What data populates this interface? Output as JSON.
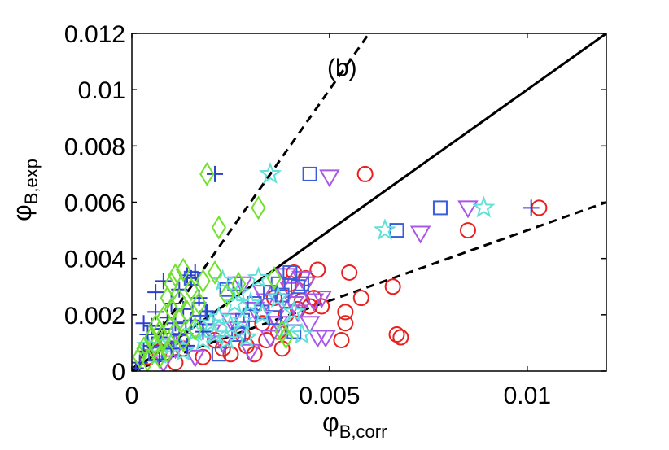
{
  "chart_data": {
    "type": "scatter",
    "panel_label": "(b)",
    "xlabel": {
      "symbol": "φ",
      "subscript": "B,corr"
    },
    "ylabel": {
      "symbol": "φ",
      "subscript": "B,exp"
    },
    "xlim": [
      0,
      0.012
    ],
    "ylim": [
      0,
      0.012
    ],
    "xticks": [
      0,
      0.005,
      0.01
    ],
    "xtick_labels": [
      "0",
      "0.005",
      "0.01"
    ],
    "yticks": [
      0,
      0.002,
      0.004,
      0.006,
      0.008,
      0.01,
      0.012
    ],
    "ytick_labels": [
      "0",
      "0.002",
      "0.004",
      "0.006",
      "0.008",
      "0.01",
      "0.012"
    ],
    "grid": false,
    "reference_lines": [
      {
        "name": "parity",
        "slope": 1,
        "style": "solid",
        "color": "#000000"
      },
      {
        "name": "upper-bound",
        "slope": 2,
        "style": "dashed",
        "color": "#000000"
      },
      {
        "name": "lower-bound",
        "slope": 0.5,
        "style": "dashed",
        "color": "#000000"
      }
    ],
    "series": [
      {
        "name": "circles",
        "marker": "circle",
        "color": "#e8201e",
        "points": [
          [
            0.0004,
            0.0005
          ],
          [
            0.0007,
            0.0007
          ],
          [
            0.0011,
            0.0003
          ],
          [
            0.0013,
            0.0008
          ],
          [
            0.0018,
            0.0005
          ],
          [
            0.0021,
            0.0011
          ],
          [
            0.0023,
            0.0008
          ],
          [
            0.0025,
            0.0006
          ],
          [
            0.0028,
            0.0013
          ],
          [
            0.0029,
            0.0009
          ],
          [
            0.0031,
            0.0006
          ],
          [
            0.0033,
            0.0017
          ],
          [
            0.0034,
            0.0011
          ],
          [
            0.0036,
            0.0026
          ],
          [
            0.0037,
            0.0014
          ],
          [
            0.0038,
            0.0008
          ],
          [
            0.0039,
            0.002
          ],
          [
            0.004,
            0.0031
          ],
          [
            0.0041,
            0.0035
          ],
          [
            0.0042,
            0.0022
          ],
          [
            0.0043,
            0.0025
          ],
          [
            0.0044,
            0.0033
          ],
          [
            0.0045,
            0.0023
          ],
          [
            0.0046,
            0.0026
          ],
          [
            0.0047,
            0.0036
          ],
          [
            0.0048,
            0.0023
          ],
          [
            0.0053,
            0.0011
          ],
          [
            0.0054,
            0.0017
          ],
          [
            0.0054,
            0.0021
          ],
          [
            0.0055,
            0.0035
          ],
          [
            0.0058,
            0.0026
          ],
          [
            0.0059,
            0.007
          ],
          [
            0.0066,
            0.003
          ],
          [
            0.0067,
            0.0013
          ],
          [
            0.0068,
            0.0012
          ],
          [
            0.0085,
            0.005
          ],
          [
            0.0103,
            0.0058
          ]
        ]
      },
      {
        "name": "triangles",
        "marker": "triangle-down",
        "color": "#a857e8",
        "points": [
          [
            0.0008,
            0.0003
          ],
          [
            0.0011,
            0.0008
          ],
          [
            0.0013,
            0.0011
          ],
          [
            0.0016,
            0.0005
          ],
          [
            0.002,
            0.0014
          ],
          [
            0.0023,
            0.001
          ],
          [
            0.0025,
            0.0018
          ],
          [
            0.0027,
            0.0015
          ],
          [
            0.0028,
            0.0031
          ],
          [
            0.003,
            0.0007
          ],
          [
            0.0031,
            0.0022
          ],
          [
            0.0033,
            0.0028
          ],
          [
            0.0034,
            0.0025
          ],
          [
            0.0035,
            0.0012
          ],
          [
            0.0036,
            0.0019
          ],
          [
            0.0037,
            0.0017
          ],
          [
            0.0038,
            0.0025
          ],
          [
            0.0039,
            0.0034
          ],
          [
            0.004,
            0.0029
          ],
          [
            0.0041,
            0.0024
          ],
          [
            0.0042,
            0.0021
          ],
          [
            0.0043,
            0.0033
          ],
          [
            0.0044,
            0.0031
          ],
          [
            0.0045,
            0.0017
          ],
          [
            0.0046,
            0.0025
          ],
          [
            0.0047,
            0.0012
          ],
          [
            0.0048,
            0.0026
          ],
          [
            0.0049,
            0.0012
          ],
          [
            0.005,
            0.0069
          ],
          [
            0.0073,
            0.0049
          ],
          [
            0.0085,
            0.0058
          ]
        ]
      },
      {
        "name": "squares",
        "marker": "square",
        "color": "#3a5ddb",
        "points": [
          [
            0.0006,
            0.0006
          ],
          [
            0.0009,
            0.0011
          ],
          [
            0.0012,
            0.0015
          ],
          [
            0.0015,
            0.0033
          ],
          [
            0.0017,
            0.0022
          ],
          [
            0.0019,
            0.0019
          ],
          [
            0.0022,
            0.0006
          ],
          [
            0.0024,
            0.0029
          ],
          [
            0.0026,
            0.0031
          ],
          [
            0.0027,
            0.0013
          ],
          [
            0.0028,
            0.0018
          ],
          [
            0.003,
            0.002
          ],
          [
            0.0031,
            0.0024
          ],
          [
            0.0033,
            0.0021
          ],
          [
            0.0035,
            0.0028
          ],
          [
            0.0036,
            0.0019
          ],
          [
            0.0037,
            0.0031
          ],
          [
            0.0038,
            0.0027
          ],
          [
            0.004,
            0.0035
          ],
          [
            0.0041,
            0.0014
          ],
          [
            0.0042,
            0.003
          ],
          [
            0.0043,
            0.0031
          ],
          [
            0.0045,
            0.007
          ],
          [
            0.0067,
            0.005
          ],
          [
            0.0078,
            0.0058
          ]
        ]
      },
      {
        "name": "stars",
        "marker": "star",
        "color": "#5fe0d8",
        "points": [
          [
            0.0004,
            0.0009
          ],
          [
            0.0007,
            0.0006
          ],
          [
            0.001,
            0.001
          ],
          [
            0.0013,
            0.0007
          ],
          [
            0.0016,
            0.0014
          ],
          [
            0.0018,
            0.0011
          ],
          [
            0.002,
            0.0017
          ],
          [
            0.0021,
            0.0013
          ],
          [
            0.0022,
            0.0019
          ],
          [
            0.0023,
            0.0032
          ],
          [
            0.0024,
            0.0011
          ],
          [
            0.0025,
            0.0016
          ],
          [
            0.0026,
            0.0024
          ],
          [
            0.0027,
            0.0028
          ],
          [
            0.0028,
            0.0018
          ],
          [
            0.0029,
            0.0012
          ],
          [
            0.003,
            0.0024
          ],
          [
            0.0032,
            0.0033
          ],
          [
            0.0033,
            0.002
          ],
          [
            0.0035,
            0.007
          ],
          [
            0.0037,
            0.0026
          ],
          [
            0.0039,
            0.0015
          ],
          [
            0.0041,
            0.0021
          ],
          [
            0.0043,
            0.0013
          ],
          [
            0.0064,
            0.005
          ],
          [
            0.0089,
            0.0058
          ]
        ]
      },
      {
        "name": "crosses",
        "marker": "plus",
        "color": "#2a3fd0",
        "points": [
          [
            0.0001,
            0.0001
          ],
          [
            0.0002,
            0.0003
          ],
          [
            0.0003,
            0.0007
          ],
          [
            0.0003,
            0.0017
          ],
          [
            0.0004,
            0.0013
          ],
          [
            0.0005,
            0.0016
          ],
          [
            0.0005,
            0.0009
          ],
          [
            0.0006,
            0.0021
          ],
          [
            0.0006,
            0.0028
          ],
          [
            0.0007,
            0.0004
          ],
          [
            0.0007,
            0.0012
          ],
          [
            0.0008,
            0.0015
          ],
          [
            0.0008,
            0.0032
          ],
          [
            0.0009,
            0.0019
          ],
          [
            0.001,
            0.0008
          ],
          [
            0.001,
            0.0024
          ],
          [
            0.0011,
            0.0017
          ],
          [
            0.0012,
            0.0029
          ],
          [
            0.0012,
            0.0013
          ],
          [
            0.0013,
            0.0022
          ],
          [
            0.0014,
            0.0009
          ],
          [
            0.0014,
            0.0034
          ],
          [
            0.0015,
            0.0018
          ],
          [
            0.0015,
            0.0033
          ],
          [
            0.0016,
            0.0035
          ],
          [
            0.0017,
            0.0026
          ],
          [
            0.0018,
            0.0014
          ],
          [
            0.0019,
            0.0021
          ],
          [
            0.0021,
            0.007
          ],
          [
            0.0101,
            0.0058
          ]
        ]
      },
      {
        "name": "diamonds",
        "marker": "diamond",
        "color": "#70e22e",
        "points": [
          [
            0.0002,
            0.0005
          ],
          [
            0.0003,
            0.0008
          ],
          [
            0.0004,
            0.0004
          ],
          [
            0.0005,
            0.0012
          ],
          [
            0.0006,
            0.0009
          ],
          [
            0.0006,
            0.0016
          ],
          [
            0.0007,
            0.0014
          ],
          [
            0.0007,
            0.0005
          ],
          [
            0.0008,
            0.0019
          ],
          [
            0.0008,
            0.0011
          ],
          [
            0.0009,
            0.0026
          ],
          [
            0.0009,
            0.0007
          ],
          [
            0.001,
            0.0022
          ],
          [
            0.001,
            0.0031
          ],
          [
            0.0011,
            0.0014
          ],
          [
            0.0011,
            0.0034
          ],
          [
            0.0012,
            0.0018
          ],
          [
            0.0012,
            0.0025
          ],
          [
            0.0013,
            0.0036
          ],
          [
            0.0013,
            0.0011
          ],
          [
            0.0014,
            0.0021
          ],
          [
            0.0015,
            0.0029
          ],
          [
            0.0016,
            0.0015
          ],
          [
            0.0017,
            0.0024
          ],
          [
            0.0018,
            0.0032
          ],
          [
            0.0019,
            0.007
          ],
          [
            0.0021,
            0.0035
          ],
          [
            0.0022,
            0.0051
          ],
          [
            0.0024,
            0.0027
          ],
          [
            0.0027,
            0.0031
          ],
          [
            0.0032,
            0.0058
          ],
          [
            0.0036,
            0.0033
          ],
          [
            0.0038,
            0.0014
          ],
          [
            0.0039,
            0.0012
          ]
        ]
      }
    ]
  }
}
